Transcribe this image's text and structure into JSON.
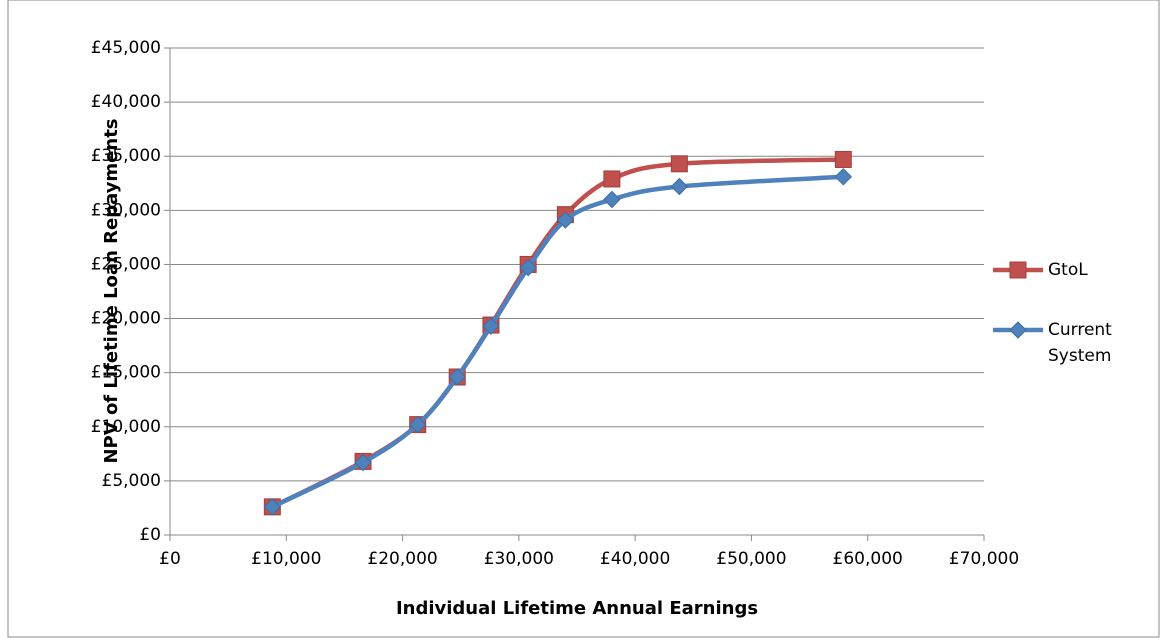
{
  "chart_data": {
    "type": "line",
    "xlabel": "Individual Lifetime Annual Earnings",
    "ylabel": "NPV of Lifetime Loan Repayments",
    "x": [
      8800,
      16600,
      21300,
      24700,
      27600,
      30800,
      34000,
      38000,
      43800,
      57900
    ],
    "series": [
      {
        "name": "GtoL",
        "color": "#c0504d",
        "marker": "square",
        "values": [
          2600,
          6800,
          10200,
          14600,
          19400,
          25000,
          29600,
          32900,
          34300,
          34700
        ]
      },
      {
        "name": "Current System",
        "color": "#4f81bd",
        "marker": "diamond",
        "values": [
          2600,
          6700,
          10200,
          14600,
          19300,
          24700,
          29100,
          31000,
          32200,
          33100
        ]
      }
    ],
    "xlim": [
      0,
      70000
    ],
    "xticks": [
      {
        "value": 0,
        "label": "£0"
      },
      {
        "value": 10000,
        "label": "£10,000"
      },
      {
        "value": 20000,
        "label": "£20,000"
      },
      {
        "value": 30000,
        "label": "£30,000"
      },
      {
        "value": 40000,
        "label": "£40,000"
      },
      {
        "value": 50000,
        "label": "£50,000"
      },
      {
        "value": 60000,
        "label": "£60,000"
      },
      {
        "value": 70000,
        "label": "£70,000"
      }
    ],
    "ylim": [
      0,
      45000
    ],
    "yticks": [
      {
        "value": 0,
        "label": "£0"
      },
      {
        "value": 5000,
        "label": "£5,000"
      },
      {
        "value": 10000,
        "label": "£10,000"
      },
      {
        "value": 15000,
        "label": "£15,000"
      },
      {
        "value": 20000,
        "label": "£20,000"
      },
      {
        "value": 25000,
        "label": "£25,000"
      },
      {
        "value": 30000,
        "label": "£30,000"
      },
      {
        "value": 35000,
        "label": "£35,000"
      },
      {
        "value": 40000,
        "label": "£40,000"
      },
      {
        "value": 45000,
        "label": "£45,000"
      }
    ],
    "grid": true,
    "legend": "right",
    "smooth": true
  }
}
